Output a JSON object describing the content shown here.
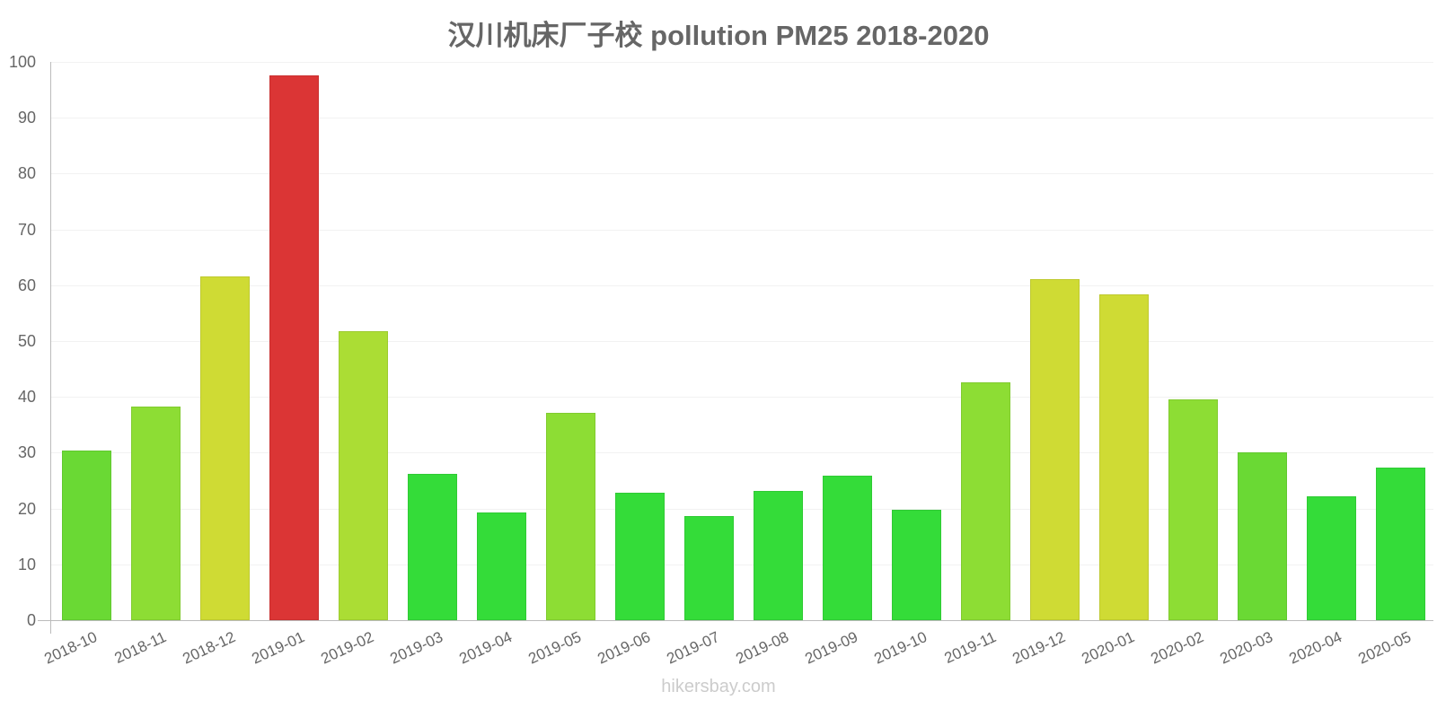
{
  "chart_data": {
    "type": "bar",
    "title": "汉川机床厂子校 pollution PM25 2018-2020",
    "xlabel": "",
    "ylabel": "",
    "ylim": [
      0,
      100
    ],
    "yticks": [
      0,
      10,
      20,
      30,
      40,
      50,
      60,
      70,
      80,
      90,
      100
    ],
    "grid": true,
    "legend": null,
    "categories": [
      "2018-10",
      "2018-11",
      "2018-12",
      "2019-01",
      "2019-02",
      "2019-03",
      "2019-04",
      "2019-05",
      "2019-06",
      "2019-07",
      "2019-08",
      "2019-09",
      "2019-10",
      "2019-11",
      "2019-12",
      "2020-01",
      "2020-02",
      "2020-03",
      "2020-04",
      "2020-05"
    ],
    "values": [
      30.4,
      38.3,
      61.6,
      97.6,
      51.8,
      26.2,
      19.3,
      37.1,
      22.8,
      18.6,
      23.2,
      25.9,
      19.8,
      42.6,
      61.1,
      58.4,
      39.5,
      30.1,
      22.2,
      27.3
    ],
    "colors": [
      "#6ad934",
      "#8ddd34",
      "#cfdb34",
      "#db3535",
      "#abdd34",
      "#34dc39",
      "#34dc39",
      "#8ddd34",
      "#34dc39",
      "#34dc39",
      "#34dc39",
      "#34dc39",
      "#34dc39",
      "#8ddd34",
      "#cfdb34",
      "#cfdb34",
      "#8ddd34",
      "#6ad934",
      "#34dc39",
      "#34dc39"
    ]
  },
  "watermark": "hikersbay.com"
}
